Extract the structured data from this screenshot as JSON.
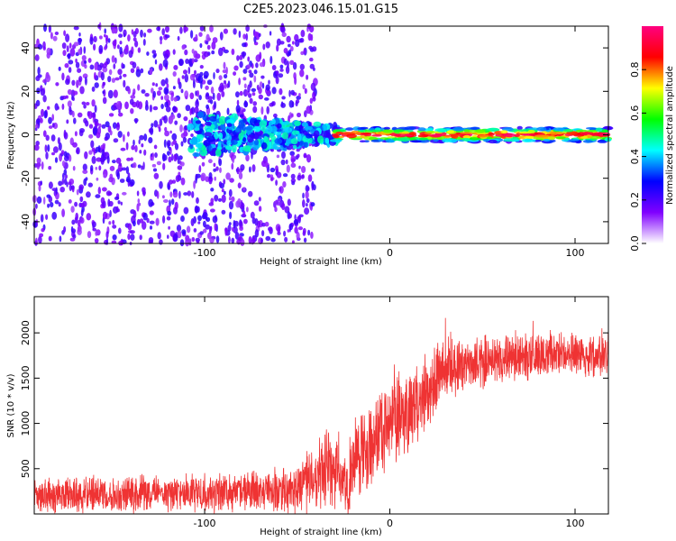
{
  "title": "C2E5.2023.046.15.01.G15",
  "chart_data": [
    {
      "type": "heatmap",
      "xlabel": "Height of straight line (km)",
      "ylabel": "Frequency (Hz)",
      "xlim": [
        -192,
        118
      ],
      "ylim": [
        -50,
        50
      ],
      "xticks": [
        -100,
        0,
        100
      ],
      "yticks": [
        -40,
        -20,
        0,
        20,
        40
      ],
      "grid": false,
      "colorbar": {
        "label": "Normalized spectral amplitude",
        "range": [
          0,
          1
        ],
        "ticks": [
          "0.0",
          "0.2",
          "0.4",
          "0.6",
          "0.8"
        ],
        "colormap": [
          "#ffffff",
          "#8000ff",
          "#0000ff",
          "#00ffff",
          "#00ff00",
          "#ffff00",
          "#ff0000",
          "#ff0080"
        ]
      },
      "features": [
        {
          "x_range": [
            -192,
            -40
          ],
          "frequency_range": [
            -50,
            50
          ],
          "amplitude": 0.1,
          "pattern": "broadband speckle"
        },
        {
          "x_range": [
            -108,
            -28
          ],
          "frequency_range": [
            -10,
            10
          ],
          "amplitude": 0.25,
          "pattern": "central band"
        },
        {
          "x_range": [
            -30,
            118
          ],
          "frequency_range": [
            -2,
            2
          ],
          "amplitude": 0.9,
          "pattern": "narrow carrier"
        }
      ]
    },
    {
      "type": "line",
      "xlabel": "Height of straight line (km)",
      "ylabel": "SNR (10 * v/v)",
      "xlim": [
        -192,
        118
      ],
      "ylim": [
        0,
        2400
      ],
      "xticks": [
        -100,
        0,
        100
      ],
      "yticks": [
        500,
        1000,
        1500,
        2000
      ],
      "grid": false,
      "series": [
        {
          "color": "#ef3333",
          "x": [
            -192,
            -180,
            -160,
            -140,
            -120,
            -100,
            -80,
            -60,
            -50,
            -45,
            -40,
            -35,
            -30,
            -28,
            -25,
            -22,
            -20,
            -15,
            -10,
            -5,
            0,
            5,
            10,
            12,
            15,
            20,
            25,
            30,
            40,
            50,
            60,
            70,
            80,
            90,
            100,
            110,
            118
          ],
          "y": [
            200,
            210,
            220,
            225,
            230,
            240,
            250,
            265,
            280,
            350,
            420,
            480,
            500,
            440,
            350,
            260,
            520,
            740,
            760,
            920,
            1040,
            1110,
            1160,
            1180,
            1220,
            1380,
            1540,
            1610,
            1650,
            1680,
            1700,
            1740,
            1750,
            1760,
            1760,
            1740,
            1780
          ],
          "noise": [
            170,
            170,
            175,
            180,
            180,
            190,
            200,
            210,
            230,
            280,
            330,
            380,
            420,
            420,
            330,
            300,
            420,
            420,
            420,
            430,
            440,
            430,
            430,
            430,
            420,
            380,
            340,
            300,
            260,
            250,
            240,
            240,
            230,
            230,
            230,
            230,
            230
          ]
        }
      ]
    }
  ]
}
